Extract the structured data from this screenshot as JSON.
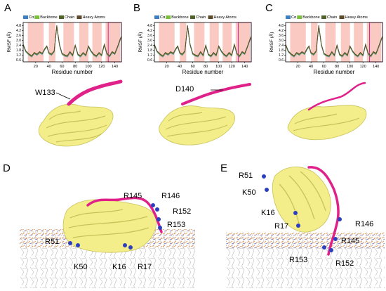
{
  "panels": {
    "a": {
      "letter": "A",
      "residue_label": "W133"
    },
    "b": {
      "letter": "B",
      "residue_label": "D140"
    },
    "c": {
      "letter": "C"
    },
    "d": {
      "letter": "D",
      "labels": [
        "R51",
        "K50",
        "K16",
        "R17",
        "R145",
        "R146",
        "R152",
        "R153"
      ]
    },
    "e": {
      "letter": "E",
      "labels": [
        "R51",
        "K50",
        "K16",
        "R17",
        "R146",
        "R145",
        "R153",
        "R152"
      ]
    }
  },
  "rmsf": {
    "ylabel": "RMSF (Å)",
    "xlabel": "Residue number",
    "xticks": [
      "20",
      "40",
      "60",
      "80",
      "100",
      "120",
      "140"
    ],
    "yticks": [
      "0.6",
      "1.2",
      "1.8",
      "2.4",
      "3.0",
      "3.6",
      "4.2",
      "4.8"
    ],
    "legend": [
      "Cα",
      "Backbone",
      "Chain",
      "Heavy Atoms"
    ],
    "legend_colors": [
      "#3d7fc1",
      "#7cbf3d",
      "#4f6228",
      "#5c4a2a"
    ],
    "helix_shade_color": "#f9c9c2",
    "highlight_color": "#e0218a"
  },
  "chart_data": {
    "type": "line",
    "xlabel": "Residue number",
    "ylabel": "RMSF (Å)",
    "xlim": [
      1,
      150
    ],
    "ylim": [
      0.4,
      5.2
    ],
    "shaded_helices": [
      [
        8,
        32
      ],
      [
        40,
        50
      ],
      [
        62,
        78
      ],
      [
        86,
        100
      ],
      [
        106,
        120
      ],
      [
        126,
        148
      ]
    ],
    "x": [
      1,
      5,
      10,
      14,
      18,
      22,
      26,
      30,
      34,
      37,
      40,
      44,
      48,
      52,
      56,
      60,
      64,
      68,
      72,
      76,
      80,
      84,
      88,
      92,
      96,
      100,
      104,
      108,
      112,
      116,
      120,
      124,
      128,
      132,
      136,
      140,
      144,
      148,
      150
    ],
    "series": [
      {
        "values": [
          2.4,
          1.6,
          1.2,
          1.0,
          1.4,
          1.2,
          1.5,
          1.3,
          1.9,
          2.2,
          1.4,
          1.2,
          1.6,
          4.7,
          2.4,
          1.3,
          1.1,
          1.0,
          1.5,
          1.1,
          2.3,
          1.2,
          1.0,
          1.4,
          1.1,
          2.2,
          1.6,
          1.2,
          1.0,
          1.4,
          1.1,
          2.4,
          1.3,
          1.0,
          1.5,
          1.3,
          2.1,
          3.0,
          3.4
        ]
      }
    ]
  }
}
